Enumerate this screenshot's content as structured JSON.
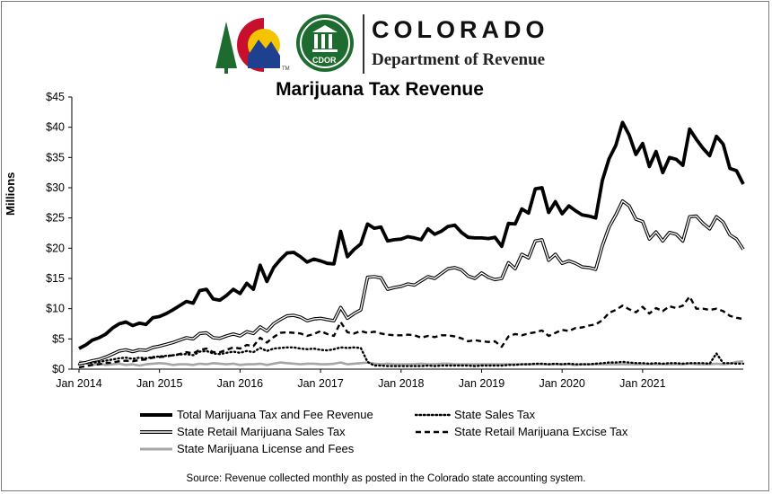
{
  "header": {
    "agency_name": "COLORADO",
    "agency_sub": "Department of Revenue",
    "badge_text": "CDOR",
    "tm_mark": "TM"
  },
  "colors": {
    "flag_red": "#c8102e",
    "flag_blue": "#1f3f8f",
    "flag_yellow": "#f5c400",
    "tree_green": "#1d6b2f",
    "badge_green": "#1d6b2f",
    "series_gray": "#a6a6a6"
  },
  "source": "Source: Revenue collected monthly as posted in the Colorado state accounting system.",
  "chart_data": {
    "type": "line",
    "title": "Marijuana Tax Revenue",
    "ylabel": "Millions",
    "xlabel": "",
    "ylim": [
      0,
      45
    ],
    "y_ticks": [
      "$0",
      "$5",
      "$10",
      "$15",
      "$20",
      "$25",
      "$30",
      "$35",
      "$40",
      "$45"
    ],
    "x_tick_labels": [
      "Jan 2014",
      "Jan 2015",
      "Jan 2016",
      "Jan 2017",
      "Jan 2018",
      "Jan 2019",
      "Jan 2020",
      "Jan 2021"
    ],
    "x_start": "Jan 2014",
    "x_end": "Dec 2021",
    "grid": false,
    "legend_position": "bottom",
    "series": [
      {
        "name": "Total Marijuana Tax and Fee Revenue",
        "style": "thick-solid",
        "values": [
          3.4,
          4.0,
          4.8,
          5.2,
          5.8,
          6.8,
          7.5,
          7.8,
          7.2,
          7.6,
          7.4,
          8.5,
          8.7,
          9.2,
          9.8,
          10.5,
          11.2,
          10.9,
          13.0,
          13.2,
          11.6,
          11.4,
          12.2,
          13.2,
          12.5,
          14.2,
          13.2,
          17.2,
          14.5,
          16.8,
          18.1,
          19.2,
          19.3,
          18.6,
          17.7,
          18.2,
          17.9,
          17.5,
          17.4,
          22.8,
          18.6,
          19.8,
          20.7,
          24.0,
          23.3,
          23.5,
          21.2,
          21.4,
          21.5,
          21.9,
          21.7,
          21.4,
          23.2,
          22.3,
          22.8,
          23.6,
          23.8,
          22.6,
          21.8,
          21.7,
          21.7,
          21.6,
          21.8,
          20.3,
          24.1,
          24.0,
          26.5,
          25.8,
          29.8,
          30.0,
          25.9,
          27.7,
          25.7,
          27.0,
          26.2,
          25.5,
          25.3,
          25.0,
          31.2,
          34.8,
          37.0,
          40.8,
          38.7,
          35.5,
          37.3,
          33.5,
          36.0,
          32.5,
          35.0,
          34.7,
          33.7,
          39.7,
          38.0,
          36.5,
          35.3,
          38.5,
          37.2,
          33.2,
          32.8,
          30.6
        ]
      },
      {
        "name": "State Sales Tax",
        "style": "dotted",
        "values": [
          0.8,
          1.0,
          1.1,
          1.2,
          1.4,
          1.6,
          1.8,
          1.9,
          1.7,
          1.9,
          1.8,
          2.0,
          2.1,
          2.2,
          2.3,
          2.4,
          2.5,
          2.3,
          2.9,
          3.0,
          2.6,
          2.5,
          2.7,
          2.9,
          2.7,
          3.0,
          2.8,
          3.5,
          3.0,
          3.4,
          3.5,
          3.6,
          3.6,
          3.4,
          3.3,
          3.4,
          3.2,
          3.1,
          3.3,
          3.6,
          3.5,
          3.6,
          3.5,
          1.2,
          0.6,
          0.6,
          0.5,
          0.5,
          0.5,
          0.5,
          0.5,
          0.5,
          0.6,
          0.5,
          0.6,
          0.6,
          0.6,
          0.6,
          0.6,
          0.5,
          0.6,
          0.6,
          0.6,
          0.6,
          0.7,
          0.7,
          0.8,
          0.8,
          0.9,
          0.9,
          0.8,
          0.9,
          0.8,
          0.9,
          0.8,
          0.8,
          0.8,
          0.9,
          1.0,
          1.1,
          1.1,
          1.2,
          1.1,
          1.0,
          1.0,
          0.9,
          1.0,
          0.9,
          1.0,
          1.0,
          0.9,
          1.0,
          1.0,
          1.0,
          0.9,
          2.6,
          1.0,
          1.0,
          0.9,
          0.9
        ]
      },
      {
        "name": "State Retail Marijuana Sales Tax",
        "style": "double-line",
        "values": [
          0.9,
          1.1,
          1.4,
          1.6,
          2.0,
          2.5,
          3.0,
          3.2,
          2.9,
          3.2,
          3.1,
          3.6,
          3.8,
          4.1,
          4.4,
          4.8,
          5.2,
          5.0,
          5.9,
          6.0,
          5.2,
          5.1,
          5.5,
          5.8,
          5.5,
          6.2,
          5.9,
          7.0,
          6.3,
          7.5,
          8.2,
          8.8,
          8.9,
          8.6,
          8.0,
          8.3,
          8.4,
          8.2,
          8.0,
          10.2,
          8.4,
          9.2,
          9.8,
          15.2,
          15.3,
          15.1,
          13.2,
          13.5,
          13.7,
          14.1,
          13.9,
          14.6,
          15.3,
          15.0,
          15.8,
          16.6,
          16.8,
          16.4,
          15.4,
          15.0,
          15.9,
          15.2,
          14.8,
          15.0,
          17.6,
          16.6,
          19.0,
          18.4,
          21.2,
          21.4,
          18.0,
          19.0,
          17.5,
          17.9,
          17.5,
          16.9,
          16.8,
          16.5,
          20.4,
          23.5,
          25.5,
          27.8,
          27.0,
          24.8,
          24.4,
          21.5,
          22.7,
          21.2,
          22.6,
          22.3,
          21.2,
          25.2,
          25.3,
          24.1,
          23.2,
          25.2,
          24.3,
          22.2,
          21.5,
          19.8
        ]
      },
      {
        "name": "State Retail Marijuana Excise Tax",
        "style": "dashed",
        "values": [
          0.3,
          0.5,
          0.7,
          0.8,
          1.0,
          1.1,
          1.3,
          1.4,
          1.3,
          1.5,
          1.6,
          1.9,
          2.0,
          2.1,
          2.3,
          2.5,
          2.8,
          2.6,
          3.2,
          3.4,
          2.8,
          2.8,
          3.2,
          3.6,
          3.4,
          4.0,
          3.8,
          5.2,
          4.4,
          5.3,
          6.0,
          6.1,
          6.0,
          5.9,
          5.5,
          5.8,
          6.3,
          5.8,
          5.5,
          7.8,
          6.1,
          5.9,
          6.3,
          6.0,
          6.2,
          5.9,
          5.7,
          5.6,
          5.6,
          5.7,
          5.6,
          5.2,
          5.5,
          5.3,
          5.6,
          5.6,
          5.4,
          5.1,
          4.6,
          4.8,
          4.6,
          4.5,
          4.6,
          3.7,
          5.4,
          5.8,
          5.6,
          5.9,
          6.1,
          6.4,
          5.5,
          6.0,
          6.5,
          6.3,
          6.8,
          6.9,
          7.2,
          7.4,
          8.1,
          9.3,
          9.8,
          10.5,
          9.9,
          9.4,
          10.3,
          9.2,
          10.1,
          9.6,
          10.4,
          10.1,
          10.5,
          12.0,
          10.0,
          10.0,
          9.8,
          10.0,
          9.6,
          8.8,
          8.5,
          8.3
        ]
      },
      {
        "name": "State Marijuana License and Fees",
        "style": "gray-solid",
        "values": [
          1.3,
          1.0,
          0.7,
          0.9,
          0.7,
          0.8,
          0.9,
          0.7,
          0.8,
          0.6,
          0.8,
          0.9,
          1.0,
          0.9,
          0.7,
          0.8,
          0.8,
          0.7,
          0.9,
          0.8,
          1.0,
          0.9,
          0.8,
          0.9,
          0.7,
          0.8,
          0.8,
          0.9,
          0.7,
          0.9,
          1.1,
          1.0,
          0.9,
          0.8,
          0.9,
          0.9,
          0.8,
          0.8,
          0.9,
          1.1,
          0.8,
          0.9,
          1.0,
          1.1,
          0.9,
          0.8,
          0.9,
          0.8,
          0.8,
          0.8,
          0.8,
          0.9,
          0.8,
          0.8,
          0.9,
          0.9,
          0.8,
          0.8,
          0.8,
          0.8,
          0.8,
          0.8,
          0.8,
          0.8,
          0.8,
          0.8,
          0.8,
          0.8,
          0.8,
          0.8,
          0.8,
          0.8,
          0.8,
          0.8,
          0.7,
          0.8,
          0.8,
          0.8,
          0.8,
          0.8,
          0.8,
          0.8,
          0.8,
          0.8,
          0.8,
          0.8,
          0.8,
          0.8,
          0.8,
          0.8,
          0.8,
          0.9,
          0.8,
          0.8,
          0.8,
          0.9,
          0.8,
          0.9,
          1.2,
          1.3
        ]
      }
    ]
  }
}
